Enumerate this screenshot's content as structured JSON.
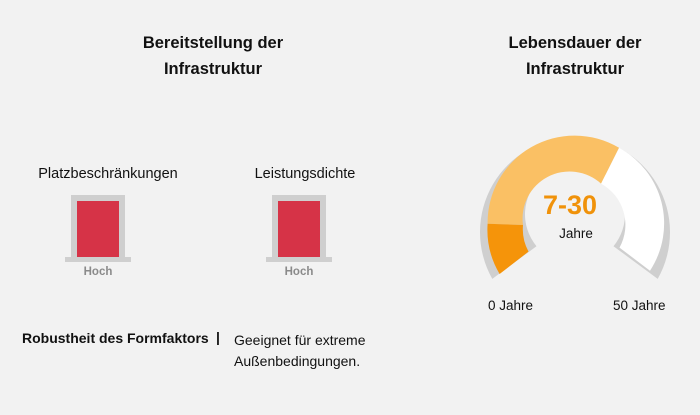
{
  "left_section": {
    "title_line1": "Bereitstellung der",
    "title_line2": "Infrastruktur",
    "metrics": [
      {
        "label": "Platzbeschränkungen",
        "level_label": "Hoch",
        "level": 1.0
      },
      {
        "label": "Leistungsdichte",
        "level_label": "Hoch",
        "level": 1.0
      }
    ],
    "robustness": {
      "label": "Robustheit des Formfaktors",
      "separator": "|",
      "value": "Geeignet für extreme Außenbedingungen."
    }
  },
  "right_section": {
    "title_line1": "Lebensdauer der",
    "title_line2": "Infrastruktur",
    "gauge": {
      "value_text": "7-30",
      "unit": "Jahre",
      "min_label": "0 Jahre",
      "max_label": "50 Jahre",
      "min": 0,
      "max": 50,
      "range_low": 7,
      "range_high": 30
    }
  },
  "colors": {
    "background": "#f2f2f2",
    "bar_fill": "#d63347",
    "bar_frame": "#cfcfcf",
    "gauge_segment_low": "#f5940a",
    "gauge_segment_range": "#fac064",
    "gauge_segment_rest": "#ffffff",
    "gauge_outline": "#cfcfcf",
    "gauge_value_text": "#f0920a"
  }
}
